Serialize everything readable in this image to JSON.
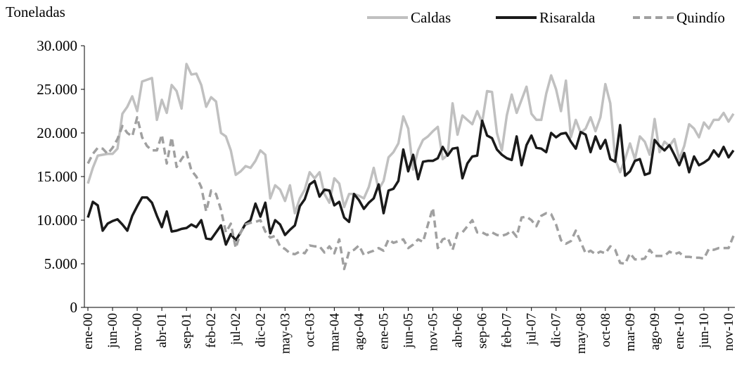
{
  "chart_data": {
    "type": "line",
    "y_label": "Toneladas",
    "categories": [
      "ene-00",
      null,
      null,
      null,
      null,
      "jun-00",
      null,
      null,
      null,
      null,
      "nov-00",
      null,
      null,
      null,
      null,
      "abr-01",
      null,
      null,
      null,
      null,
      "sep-01",
      null,
      null,
      null,
      null,
      "feb-02",
      null,
      null,
      null,
      null,
      "jul-02",
      null,
      null,
      null,
      null,
      "dic-02",
      null,
      null,
      null,
      null,
      "may-03",
      null,
      null,
      null,
      null,
      "oct-03",
      null,
      null,
      null,
      null,
      "mar-04",
      null,
      null,
      null,
      null,
      "ago-04",
      null,
      null,
      null,
      null,
      "ene-05",
      null,
      null,
      null,
      null,
      "jun-05",
      null,
      null,
      null,
      null,
      "nov-05",
      null,
      null,
      null,
      null,
      "abr-06",
      null,
      null,
      null,
      null,
      "sep-06",
      null,
      null,
      null,
      null,
      "feb-07",
      null,
      null,
      null,
      null,
      "jul-07",
      null,
      null,
      null,
      null,
      "dic-07",
      null,
      null,
      null,
      null,
      "may-08",
      null,
      null,
      null,
      null,
      "oct-08",
      null,
      null,
      null,
      null,
      "mar-09",
      null,
      null,
      null,
      null,
      "ago-09",
      null,
      null,
      null,
      null,
      "ene-10",
      null,
      null,
      null,
      null,
      "jun-10",
      null,
      null,
      null,
      null,
      "nov-10",
      null
    ],
    "series": [
      {
        "name": "Caldas",
        "color": "#c0c0c0",
        "dashed": false,
        "values": [
          14200,
          16000,
          17400,
          17500,
          17600,
          17600,
          18200,
          22200,
          23000,
          24200,
          22500,
          25900,
          26100,
          26300,
          21500,
          23800,
          22300,
          25500,
          24800,
          22800,
          27900,
          26700,
          26800,
          25500,
          23000,
          24100,
          23600,
          20000,
          19600,
          18000,
          15200,
          15600,
          16200,
          16000,
          16800,
          18000,
          17500,
          12500,
          14000,
          13500,
          12200,
          14000,
          10800,
          12500,
          13500,
          15500,
          14800,
          15500,
          13000,
          12000,
          14800,
          14200,
          11500,
          13000,
          13000,
          12800,
          12500,
          13800,
          16000,
          13500,
          14500,
          17200,
          17800,
          18800,
          21900,
          20500,
          15800,
          18000,
          19200,
          19600,
          20200,
          20700,
          17000,
          17500,
          23400,
          19800,
          22000,
          21500,
          21000,
          22500,
          21200,
          24800,
          24700,
          20000,
          18000,
          22000,
          24400,
          22300,
          23800,
          25300,
          22200,
          21500,
          21500,
          24500,
          26600,
          25000,
          22500,
          26000,
          19500,
          21500,
          20000,
          20500,
          21800,
          20200,
          21800,
          25600,
          23400,
          17000,
          15500,
          17000,
          18800,
          17000,
          19600,
          19000,
          17500,
          21600,
          17800,
          19000,
          18500,
          19300,
          17000,
          18500,
          21000,
          20500,
          19500,
          21200,
          20500,
          21500,
          21500,
          22300,
          21300,
          22200
        ]
      },
      {
        "name": "Risaralda",
        "color": "#1a1a1a",
        "dashed": false,
        "values": [
          10300,
          12100,
          11700,
          8800,
          9600,
          9900,
          10100,
          9500,
          8800,
          10500,
          11600,
          12600,
          12600,
          12000,
          10500,
          9200,
          11000,
          8700,
          8800,
          9000,
          9100,
          9500,
          9200,
          10000,
          7900,
          7800,
          8600,
          9400,
          7200,
          8400,
          7700,
          8600,
          9600,
          10000,
          11900,
          10400,
          12000,
          8500,
          10000,
          9500,
          8300,
          8900,
          9400,
          11600,
          12400,
          14100,
          14500,
          12700,
          13500,
          13400,
          11700,
          12100,
          10300,
          9800,
          13000,
          12300,
          11300,
          12000,
          12500,
          14100,
          10800,
          13400,
          13600,
          14500,
          18100,
          15600,
          17500,
          14700,
          16700,
          16800,
          16800,
          17100,
          18400,
          17400,
          18200,
          18300,
          14800,
          16500,
          17300,
          17400,
          21400,
          19700,
          19400,
          18100,
          17500,
          17100,
          16900,
          19600,
          16300,
          18600,
          19700,
          18300,
          18200,
          17800,
          20000,
          19500,
          19900,
          20000,
          19000,
          18200,
          20100,
          19800,
          17800,
          19600,
          18200,
          19200,
          17000,
          16700,
          20900,
          15100,
          15600,
          16800,
          17000,
          15200,
          15400,
          19200,
          18500,
          18000,
          18600,
          17500,
          16300,
          17700,
          15500,
          17300,
          16300,
          16600,
          17000,
          18000,
          17300,
          18400,
          17200,
          18000
        ]
      },
      {
        "name": "Quindío",
        "color": "#a0a0a0",
        "dashed": true,
        "values": [
          16500,
          17600,
          18300,
          18200,
          17600,
          18300,
          19300,
          20800,
          20000,
          19600,
          21800,
          19500,
          18500,
          18000,
          18000,
          19800,
          16500,
          19500,
          16100,
          17000,
          17800,
          15700,
          15000,
          13800,
          11000,
          13400,
          13000,
          11200,
          8600,
          9600,
          6800,
          8600,
          9500,
          9700,
          9800,
          10000,
          8700,
          8000,
          8200,
          7000,
          6700,
          6200,
          6100,
          6400,
          6200,
          7100,
          7000,
          7000,
          6300,
          7000,
          6200,
          7800,
          4400,
          6400,
          6600,
          7100,
          6000,
          6300,
          6500,
          6800,
          6500,
          7800,
          7400,
          7600,
          7800,
          6800,
          7200,
          7800,
          7500,
          9500,
          11400,
          6800,
          7800,
          8000,
          6600,
          8500,
          8600,
          9300,
          10000,
          8600,
          8600,
          8300,
          8600,
          8300,
          8200,
          8400,
          8800,
          8100,
          10300,
          10400,
          10000,
          9300,
          10500,
          10800,
          10700,
          9500,
          7700,
          7300,
          7600,
          8800,
          7500,
          6200,
          6500,
          6100,
          6400,
          6200,
          7000,
          6600,
          5100,
          5000,
          6200,
          5500,
          5500,
          5600,
          6600,
          5900,
          5900,
          5900,
          6400,
          6100,
          6300,
          5800,
          5800,
          5700,
          5700,
          5600,
          6700,
          6600,
          6800,
          6800,
          6800,
          8200
        ]
      }
    ],
    "ylim": [
      0,
      30000
    ],
    "yticks": [
      0,
      {
        "value": 5000,
        "label": "5.000"
      },
      {
        "value": 10000,
        "label": "10.000"
      },
      {
        "value": 15000,
        "label": "15.000"
      },
      {
        "value": 20000,
        "label": "20.000"
      },
      {
        "value": 25000,
        "label": "25.000"
      },
      {
        "value": 30000,
        "label": "30.000"
      }
    ],
    "grid": false,
    "legend": "top-right"
  }
}
